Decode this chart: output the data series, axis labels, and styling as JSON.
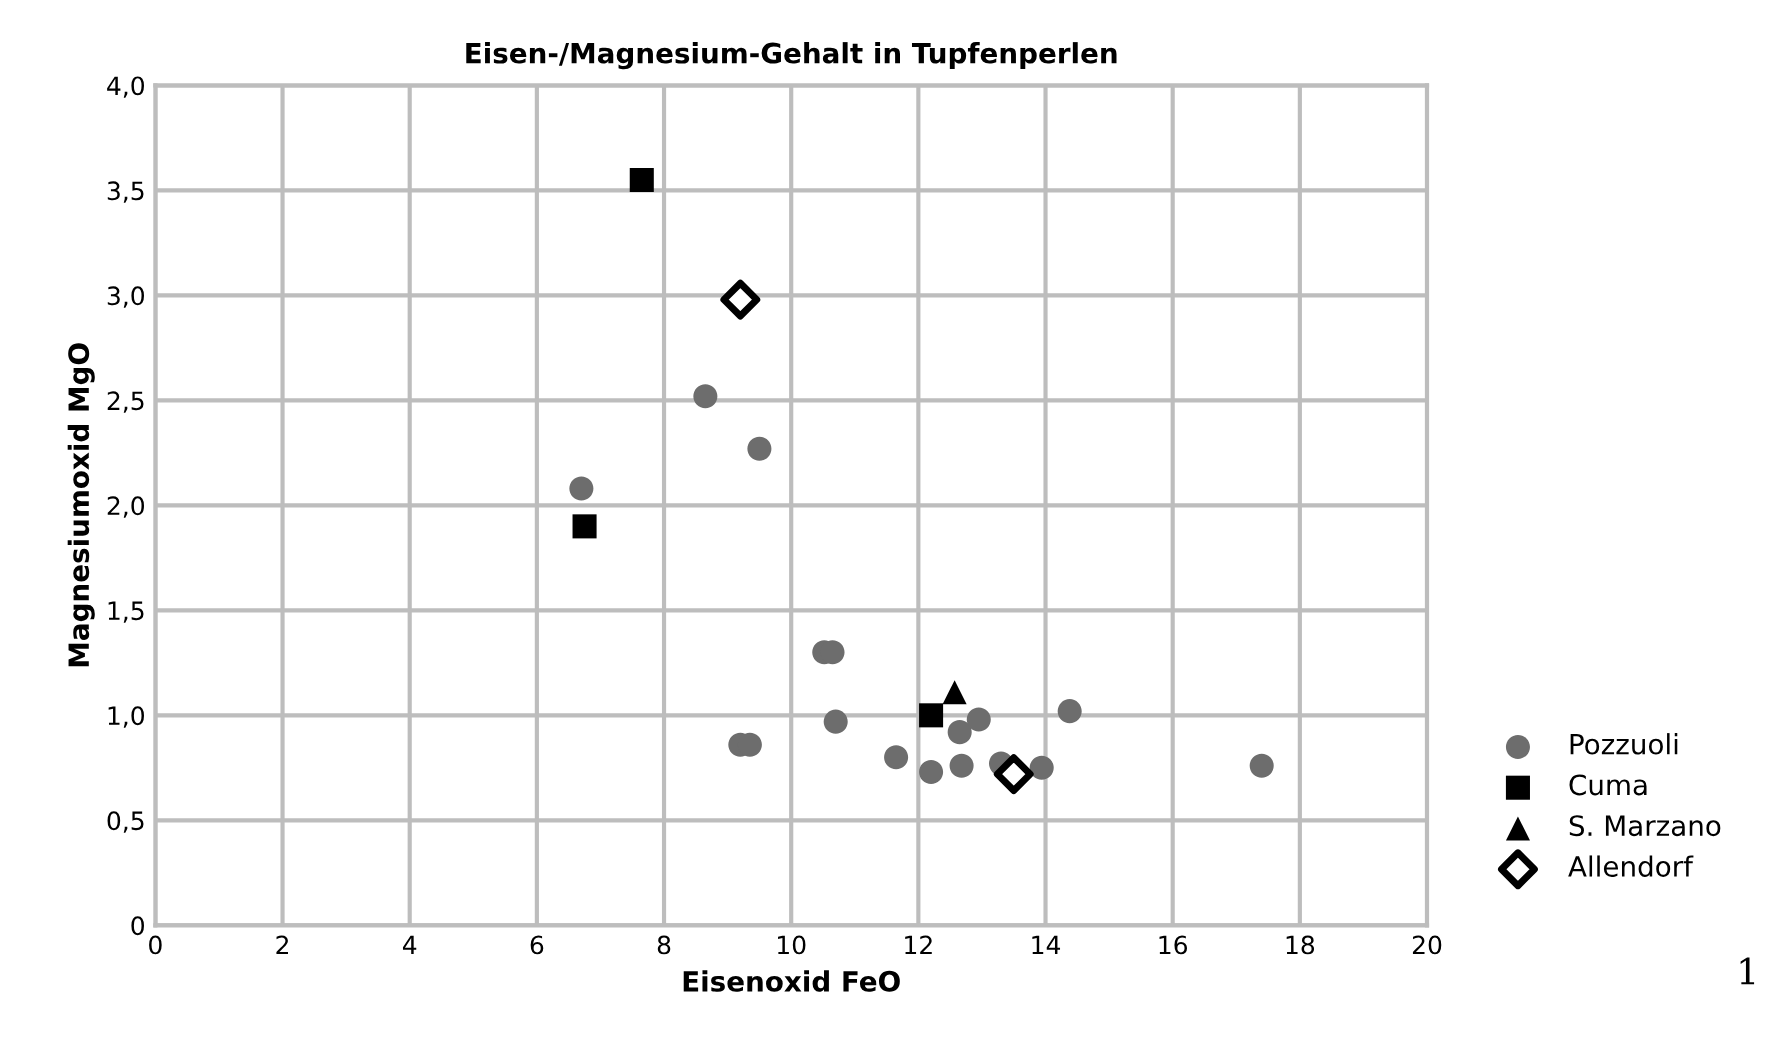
{
  "chart_data": {
    "type": "scatter",
    "title": "Eisen-/Magnesium-Gehalt in Tupfenperlen",
    "xlabel": "Eisenoxid FeO",
    "ylabel": "Magnesiumoxid MgO",
    "xlim": [
      0,
      20
    ],
    "xticks": [
      0,
      2,
      4,
      6,
      8,
      10,
      12,
      14,
      16,
      18,
      20
    ],
    "ylim": [
      0,
      4
    ],
    "yticks": [
      {
        "value": 0,
        "label": "0"
      },
      {
        "value": 0.5,
        "label": "0,5"
      },
      {
        "value": 1,
        "label": "1,0"
      },
      {
        "value": 1.5,
        "label": "1,5"
      },
      {
        "value": 2,
        "label": "2,0"
      },
      {
        "value": 2.5,
        "label": "2,5"
      },
      {
        "value": 3,
        "label": "3,0"
      },
      {
        "value": 3.5,
        "label": "3,5"
      },
      {
        "value": 4,
        "label": "4,0"
      }
    ],
    "grid": true,
    "legend": "right",
    "annotations": [
      "1"
    ],
    "series": [
      {
        "name": "Pozzuoli",
        "color": "#6d6d6d",
        "marker": "circle",
        "x": [
          6.7,
          8.65,
          9.5,
          10.52,
          10.65,
          9.2,
          9.35,
          10.7,
          11.65,
          12.2,
          12.65,
          12.68,
          12.95,
          13.3,
          13.94,
          14.38,
          17.4
        ],
        "values": [
          2.08,
          2.52,
          2.27,
          1.3,
          1.3,
          0.86,
          0.86,
          0.97,
          0.8,
          0.73,
          0.92,
          0.76,
          0.98,
          0.77,
          0.75,
          1.02,
          0.76
        ]
      },
      {
        "name": "Cuma",
        "color": "#000000",
        "marker": "square",
        "x": [
          7.65,
          6.75,
          12.2
        ],
        "values": [
          3.55,
          1.9,
          1.0
        ]
      },
      {
        "name": "S. Marzano",
        "color": "#000000",
        "marker": "triangle",
        "x": [
          12.57
        ],
        "values": [
          1.11
        ]
      },
      {
        "name": "Allendorf",
        "color": "#000000",
        "marker": "diamond",
        "x": [
          9.2,
          13.5
        ],
        "values": [
          2.98,
          0.72
        ]
      }
    ]
  }
}
